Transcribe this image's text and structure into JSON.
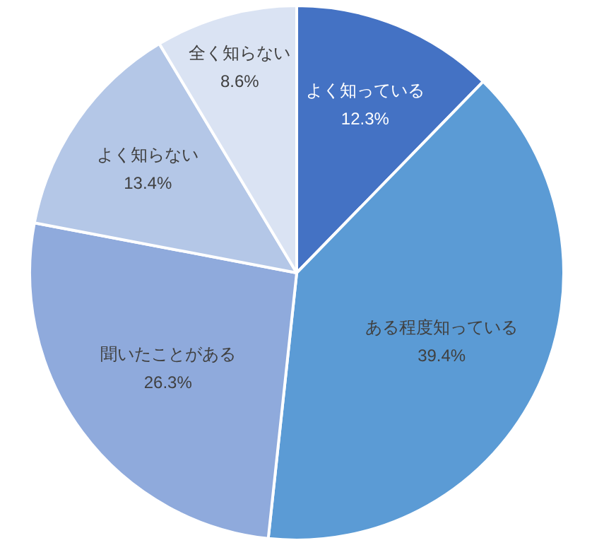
{
  "chart_data": {
    "type": "pie",
    "categories": [
      "よく知っている",
      "ある程度知っている",
      "聞いたことがある",
      "よく知らない",
      "全く知らない"
    ],
    "values": [
      12.3,
      39.4,
      26.3,
      13.4,
      8.6
    ],
    "value_labels": [
      "12.3%",
      "39.4%",
      "26.3%",
      "13.4%",
      "8.6%"
    ],
    "colors": [
      "#4472c4",
      "#5b9bd5",
      "#8faadc",
      "#b4c7e7",
      "#dae3f3"
    ]
  }
}
